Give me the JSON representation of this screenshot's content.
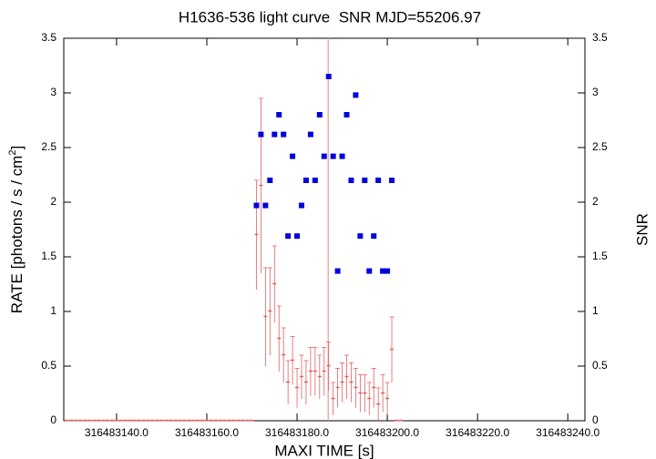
{
  "chart_data": {
    "type": "scatter",
    "title": "H1636-536 light curve  SNR MJD=55206.97",
    "xlabel": "MAXI TIME [s]",
    "ylabel": "RATE [photons / s / cm",
    "ylabel_sup": "2",
    "ylabel_end": "]",
    "y2label": "SNR",
    "xlim": [
      316483128.3,
      316483243.8
    ],
    "xticks": [
      {
        "value": 316483140,
        "label": "316483140.0"
      },
      {
        "value": 316483160,
        "label": "316483160.0"
      },
      {
        "value": 316483180,
        "label": "316483180.0"
      },
      {
        "value": 316483200,
        "label": "316483200.0"
      },
      {
        "value": 316483220,
        "label": "316483220.0"
      },
      {
        "value": 316483240,
        "label": "316483240.0"
      }
    ],
    "ylim": [
      0,
      3.5
    ],
    "yticks": [
      0,
      0.5,
      1,
      1.5,
      2,
      2.5,
      3,
      3.5
    ],
    "y2lim": [
      0,
      3.5
    ],
    "y2ticks": [
      0,
      0.5,
      1,
      1.5,
      2,
      2.5,
      3,
      3.5
    ],
    "vline": {
      "x": 316483186.9,
      "color": "#e8a0a0"
    },
    "series": [
      {
        "name": "RATE",
        "color": "#e06060",
        "errorbars": true,
        "x": [
          316483129,
          316483130,
          316483131,
          316483132,
          316483133,
          316483134,
          316483135,
          316483136,
          316483137,
          316483138,
          316483139,
          316483140,
          316483141,
          316483142,
          316483143,
          316483144,
          316483145,
          316483146,
          316483147,
          316483148,
          316483149,
          316483150,
          316483151,
          316483152,
          316483153,
          316483154,
          316483155,
          316483156,
          316483157,
          316483158,
          316483159,
          316483160,
          316483161,
          316483162,
          316483163,
          316483164,
          316483165,
          316483166,
          316483167,
          316483168,
          316483169,
          316483170,
          316483171,
          316483172,
          316483173,
          316483174,
          316483175,
          316483176,
          316483177,
          316483178,
          316483179,
          316483180,
          316483181,
          316483182,
          316483183,
          316483184,
          316483185,
          316483186,
          316483187,
          316483188,
          316483189,
          316483190,
          316483191,
          316483192,
          316483193,
          316483194,
          316483195,
          316483196,
          316483197,
          316483198,
          316483199,
          316483200,
          316483201,
          316483202,
          316483203
        ],
        "values": [
          0,
          0,
          0,
          0,
          0,
          0,
          0,
          0,
          0,
          0,
          0,
          0,
          0,
          0,
          0,
          0,
          0,
          0,
          0,
          0,
          0,
          0,
          0,
          0,
          0,
          0,
          0,
          0,
          0,
          0,
          0,
          0,
          0,
          0,
          0,
          0,
          0,
          0,
          0,
          0,
          0,
          0,
          1.7,
          2.15,
          0.95,
          1.0,
          1.25,
          0.75,
          0.6,
          0.35,
          0.55,
          0.3,
          0.4,
          0.35,
          0.45,
          0.45,
          0.4,
          0.45,
          0.5,
          0.2,
          0.3,
          0.35,
          0.4,
          0.35,
          0.3,
          0.25,
          0.25,
          0.2,
          0.3,
          0.15,
          0.25,
          0.2,
          0.65,
          0,
          0
        ],
        "errors": [
          0,
          0,
          0,
          0,
          0,
          0,
          0,
          0,
          0,
          0,
          0,
          0,
          0,
          0,
          0,
          0,
          0,
          0,
          0,
          0,
          0,
          0,
          0,
          0,
          0,
          0,
          0,
          0,
          0,
          0,
          0,
          0,
          0,
          0,
          0,
          0,
          0,
          0,
          0,
          0,
          0,
          0,
          0.5,
          0.8,
          0.45,
          0.4,
          0.35,
          0.3,
          0.25,
          0.2,
          0.22,
          0.18,
          0.2,
          0.2,
          0.22,
          0.22,
          0.2,
          0.22,
          0.22,
          0.15,
          0.18,
          0.18,
          0.2,
          0.18,
          0.18,
          0.17,
          0.17,
          0.15,
          0.18,
          0.15,
          0.17,
          0.15,
          0.3,
          0,
          0
        ]
      },
      {
        "name": "SNR",
        "color": "#0000dd",
        "axis": "y2",
        "x": [
          316483171,
          316483172,
          316483173,
          316483174,
          316483175,
          316483176,
          316483177,
          316483178,
          316483179,
          316483180,
          316483181,
          316483182,
          316483183,
          316483184,
          316483185,
          316483186,
          316483187,
          316483188,
          316483189,
          316483190,
          316483191,
          316483192,
          316483193,
          316483194,
          316483195,
          316483196,
          316483197,
          316483198,
          316483199,
          316483200,
          316483201
        ],
        "values": [
          1.97,
          2.62,
          1.97,
          2.2,
          2.62,
          2.8,
          2.62,
          1.69,
          2.42,
          1.69,
          1.97,
          2.2,
          2.62,
          2.2,
          2.8,
          2.42,
          3.15,
          2.42,
          1.37,
          2.42,
          2.8,
          2.2,
          2.98,
          1.69,
          2.2,
          1.37,
          1.69,
          2.2,
          1.37,
          1.37,
          2.2
        ]
      }
    ]
  }
}
